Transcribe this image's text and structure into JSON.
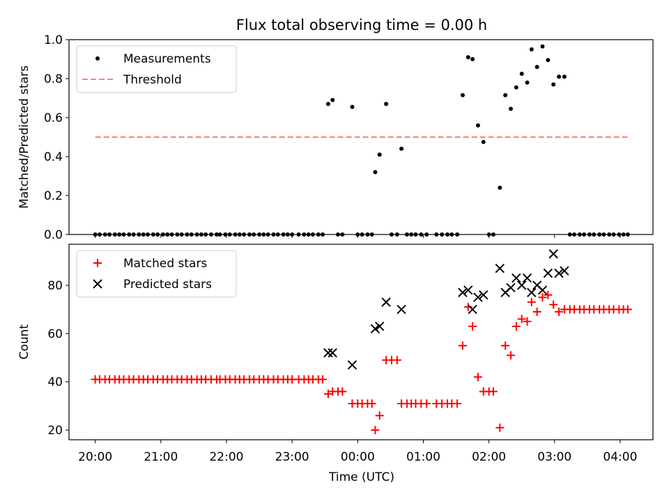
{
  "figure": {
    "title": "Flux total observing time = 0.00 h",
    "xlabel": "Time (UTC)"
  },
  "chart_data": [
    {
      "type": "scatter",
      "title": "Flux total observing time = 0.00 h",
      "xlabel": "Time (UTC)",
      "ylabel": "Matched/Predicted stars",
      "x_axis_kind": "time (UTC)",
      "xlim": [
        "19:36",
        "04:30"
      ],
      "ylim": [
        0,
        1.0
      ],
      "xticks": [
        "20:00",
        "21:00",
        "22:00",
        "23:00",
        "00:00",
        "01:00",
        "02:00",
        "03:00",
        "04:00"
      ],
      "yticks": [
        "0.0",
        "0.2",
        "0.4",
        "0.6",
        "0.8",
        "1.0"
      ],
      "legend_position": "upper left",
      "grid": false,
      "series": [
        {
          "name": "Measurements",
          "kind": "scatter",
          "marker": "dot",
          "color": "#000000",
          "points": [
            [
              "20:00",
              0
            ],
            [
              "20:04",
              0
            ],
            [
              "20:09",
              0
            ],
            [
              "20:13",
              0
            ],
            [
              "20:18",
              0
            ],
            [
              "20:22",
              0
            ],
            [
              "20:26",
              0
            ],
            [
              "20:31",
              0
            ],
            [
              "20:35",
              0
            ],
            [
              "20:40",
              0
            ],
            [
              "20:44",
              0
            ],
            [
              "20:48",
              0
            ],
            [
              "20:53",
              0
            ],
            [
              "20:57",
              0
            ],
            [
              "21:02",
              0
            ],
            [
              "21:06",
              0
            ],
            [
              "21:10",
              0
            ],
            [
              "21:15",
              0
            ],
            [
              "21:19",
              0
            ],
            [
              "21:24",
              0
            ],
            [
              "21:28",
              0
            ],
            [
              "21:33",
              0
            ],
            [
              "21:37",
              0
            ],
            [
              "21:41",
              0
            ],
            [
              "21:46",
              0
            ],
            [
              "21:51",
              0
            ],
            [
              "21:54",
              0
            ],
            [
              "21:59",
              0
            ],
            [
              "22:03",
              0
            ],
            [
              "22:08",
              0
            ],
            [
              "22:12",
              0
            ],
            [
              "22:16",
              0
            ],
            [
              "22:21",
              0
            ],
            [
              "22:25",
              0
            ],
            [
              "22:30",
              0
            ],
            [
              "22:34",
              0
            ],
            [
              "22:38",
              0
            ],
            [
              "22:43",
              0
            ],
            [
              "22:47",
              0
            ],
            [
              "22:52",
              0
            ],
            [
              "22:56",
              0
            ],
            [
              "23:00",
              0
            ],
            [
              "23:06",
              0
            ],
            [
              "23:11",
              0
            ],
            [
              "23:15",
              0
            ],
            [
              "23:19",
              0
            ],
            [
              "23:24",
              0
            ],
            [
              "23:28",
              0
            ],
            [
              "23:33",
              0.67
            ],
            [
              "23:37",
              0.69
            ],
            [
              "23:42",
              0
            ],
            [
              "23:46",
              0
            ],
            [
              "23:55",
              0.655
            ],
            [
              "00:00",
              0
            ],
            [
              "00:04",
              0
            ],
            [
              "00:09",
              0
            ],
            [
              "00:13",
              0
            ],
            [
              "00:16",
              0.32
            ],
            [
              "00:20",
              0.41
            ],
            [
              "00:26",
              0.67
            ],
            [
              "00:31",
              0
            ],
            [
              "00:36",
              0
            ],
            [
              "00:40",
              0.44
            ],
            [
              "00:45",
              0
            ],
            [
              "00:49",
              0
            ],
            [
              "00:53",
              0
            ],
            [
              "00:58",
              0
            ],
            [
              "01:03",
              0
            ],
            [
              "01:12",
              0
            ],
            [
              "01:17",
              0
            ],
            [
              "01:22",
              0
            ],
            [
              "01:26",
              0
            ],
            [
              "01:31",
              0
            ],
            [
              "01:36",
              0.715
            ],
            [
              "01:41",
              0.91
            ],
            [
              "01:45",
              0.9
            ],
            [
              "01:50",
              0.56
            ],
            [
              "01:55",
              0.475
            ],
            [
              "02:00",
              0
            ],
            [
              "02:04",
              0
            ],
            [
              "02:10",
              0.24
            ],
            [
              "02:15",
              0.715
            ],
            [
              "02:20",
              0.645
            ],
            [
              "02:25",
              0.755
            ],
            [
              "02:30",
              0.825
            ],
            [
              "02:35",
              0.78
            ],
            [
              "02:39",
              0.95
            ],
            [
              "02:44",
              0.86
            ],
            [
              "02:49",
              0.965
            ],
            [
              "02:54",
              0.895
            ],
            [
              "02:59",
              0.77
            ],
            [
              "03:04",
              0.81
            ],
            [
              "03:09",
              0.81
            ],
            [
              "03:14",
              0
            ],
            [
              "03:18",
              0
            ],
            [
              "03:23",
              0
            ],
            [
              "03:27",
              0
            ],
            [
              "03:32",
              0
            ],
            [
              "03:36",
              0
            ],
            [
              "03:41",
              0
            ],
            [
              "03:45",
              0
            ],
            [
              "03:50",
              0
            ],
            [
              "03:54",
              0
            ],
            [
              "03:59",
              0
            ],
            [
              "04:03",
              0
            ],
            [
              "04:07",
              0
            ]
          ]
        },
        {
          "name": "Threshold",
          "kind": "line",
          "line_style": "dashed",
          "color": "#ff7f7f",
          "points": [
            [
              "20:00",
              0.5
            ],
            [
              "04:07",
              0.5
            ]
          ]
        }
      ]
    },
    {
      "type": "scatter",
      "xlabel": "Time (UTC)",
      "ylabel": "Count",
      "x_axis_kind": "time (UTC)",
      "xlim": [
        "19:36",
        "04:30"
      ],
      "ylim": [
        16,
        97
      ],
      "xticks": [
        "20:00",
        "21:00",
        "22:00",
        "23:00",
        "00:00",
        "01:00",
        "02:00",
        "03:00",
        "04:00"
      ],
      "yticks": [
        "20",
        "40",
        "60",
        "80"
      ],
      "legend_position": "upper left",
      "grid": false,
      "series": [
        {
          "name": "Matched stars",
          "marker": "plus",
          "color": "#ff0000",
          "points": [
            [
              "20:00",
              41
            ],
            [
              "20:04",
              41
            ],
            [
              "20:09",
              41
            ],
            [
              "20:13",
              41
            ],
            [
              "20:18",
              41
            ],
            [
              "20:22",
              41
            ],
            [
              "20:26",
              41
            ],
            [
              "20:31",
              41
            ],
            [
              "20:35",
              41
            ],
            [
              "20:40",
              41
            ],
            [
              "20:44",
              41
            ],
            [
              "20:48",
              41
            ],
            [
              "20:53",
              41
            ],
            [
              "20:57",
              41
            ],
            [
              "21:02",
              41
            ],
            [
              "21:06",
              41
            ],
            [
              "21:10",
              41
            ],
            [
              "21:15",
              41
            ],
            [
              "21:19",
              41
            ],
            [
              "21:24",
              41
            ],
            [
              "21:28",
              41
            ],
            [
              "21:33",
              41
            ],
            [
              "21:37",
              41
            ],
            [
              "21:41",
              41
            ],
            [
              "21:46",
              41
            ],
            [
              "21:51",
              41
            ],
            [
              "21:54",
              41
            ],
            [
              "21:59",
              41
            ],
            [
              "22:03",
              41
            ],
            [
              "22:08",
              41
            ],
            [
              "22:12",
              41
            ],
            [
              "22:16",
              41
            ],
            [
              "22:21",
              41
            ],
            [
              "22:25",
              41
            ],
            [
              "22:30",
              41
            ],
            [
              "22:34",
              41
            ],
            [
              "22:38",
              41
            ],
            [
              "22:43",
              41
            ],
            [
              "22:47",
              41
            ],
            [
              "22:52",
              41
            ],
            [
              "22:56",
              41
            ],
            [
              "23:00",
              41
            ],
            [
              "23:06",
              41
            ],
            [
              "23:11",
              41
            ],
            [
              "23:15",
              41
            ],
            [
              "23:19",
              41
            ],
            [
              "23:24",
              41
            ],
            [
              "23:28",
              41
            ],
            [
              "23:33",
              35
            ],
            [
              "23:37",
              36
            ],
            [
              "23:42",
              36
            ],
            [
              "23:46",
              36
            ],
            [
              "23:55",
              31
            ],
            [
              "00:00",
              31
            ],
            [
              "00:04",
              31
            ],
            [
              "00:09",
              31
            ],
            [
              "00:13",
              31
            ],
            [
              "00:16",
              20
            ],
            [
              "00:20",
              26
            ],
            [
              "00:26",
              49
            ],
            [
              "00:31",
              49
            ],
            [
              "00:36",
              49
            ],
            [
              "00:40",
              31
            ],
            [
              "00:45",
              31
            ],
            [
              "00:49",
              31
            ],
            [
              "00:53",
              31
            ],
            [
              "00:58",
              31
            ],
            [
              "01:03",
              31
            ],
            [
              "01:12",
              31
            ],
            [
              "01:17",
              31
            ],
            [
              "01:22",
              31
            ],
            [
              "01:26",
              31
            ],
            [
              "01:31",
              31
            ],
            [
              "01:36",
              55
            ],
            [
              "01:41",
              71
            ],
            [
              "01:45",
              63
            ],
            [
              "01:50",
              42
            ],
            [
              "01:55",
              36
            ],
            [
              "02:00",
              36
            ],
            [
              "02:04",
              36
            ],
            [
              "02:10",
              21
            ],
            [
              "02:15",
              55
            ],
            [
              "02:20",
              51
            ],
            [
              "02:25",
              63
            ],
            [
              "02:30",
              66
            ],
            [
              "02:35",
              65
            ],
            [
              "02:39",
              73
            ],
            [
              "02:44",
              69
            ],
            [
              "02:49",
              75
            ],
            [
              "02:54",
              76
            ],
            [
              "02:59",
              72
            ],
            [
              "03:04",
              69
            ],
            [
              "03:09",
              70
            ],
            [
              "03:14",
              70
            ],
            [
              "03:18",
              70
            ],
            [
              "03:23",
              70
            ],
            [
              "03:27",
              70
            ],
            [
              "03:32",
              70
            ],
            [
              "03:36",
              70
            ],
            [
              "03:41",
              70
            ],
            [
              "03:45",
              70
            ],
            [
              "03:50",
              70
            ],
            [
              "03:54",
              70
            ],
            [
              "03:59",
              70
            ],
            [
              "04:03",
              70
            ],
            [
              "04:07",
              70
            ]
          ]
        },
        {
          "name": "Predicted stars",
          "marker": "x",
          "color": "#000000",
          "points": [
            [
              "23:33",
              52
            ],
            [
              "23:37",
              52
            ],
            [
              "23:55",
              47
            ],
            [
              "00:16",
              62
            ],
            [
              "00:20",
              63
            ],
            [
              "00:26",
              73
            ],
            [
              "00:40",
              70
            ],
            [
              "01:36",
              77
            ],
            [
              "01:41",
              78
            ],
            [
              "01:45",
              70
            ],
            [
              "01:50",
              75
            ],
            [
              "01:55",
              76
            ],
            [
              "02:10",
              87
            ],
            [
              "02:15",
              77
            ],
            [
              "02:20",
              79
            ],
            [
              "02:25",
              83
            ],
            [
              "02:30",
              80
            ],
            [
              "02:35",
              83
            ],
            [
              "02:39",
              77
            ],
            [
              "02:44",
              80
            ],
            [
              "02:49",
              78
            ],
            [
              "02:54",
              85
            ],
            [
              "02:59",
              93
            ],
            [
              "03:04",
              85
            ],
            [
              "03:09",
              86
            ]
          ]
        }
      ]
    }
  ]
}
